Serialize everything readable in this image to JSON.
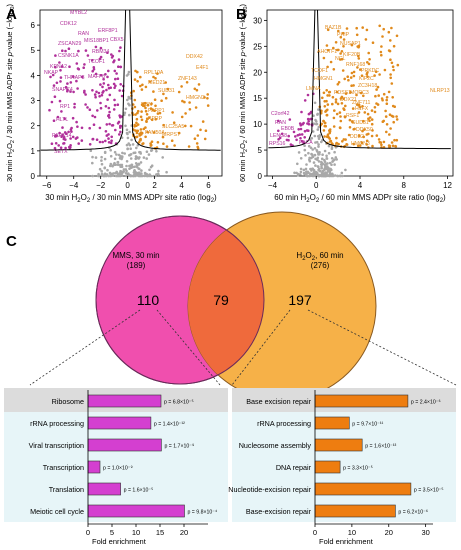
{
  "colors": {
    "magenta": "#b0309a",
    "orange": "#e08a1c",
    "grey": "#a8a8a8",
    "bar_magenta": "#d43fd0",
    "bar_orange": "#ee7d10",
    "circle_pink": "#f04fae",
    "circle_orange": "#f6b148",
    "bg_blue": "#e7f5f8",
    "bg_grey": "#dcdcdc"
  },
  "panels": {
    "a": "A",
    "b": "B",
    "c": "C"
  },
  "chart_data": [
    {
      "type": "scatter",
      "panel": "A",
      "xlabel": "30 min H2O2 / 30 min MMS ADPr site ratio (log2)",
      "ylabel": "30 min H2O2 / 30 min MMS ADPr site p-value (−log10)",
      "xlim": [
        -6.5,
        7
      ],
      "xticks": [
        "−6",
        "−4",
        "−2",
        "0",
        "2",
        "4",
        "6"
      ],
      "xtick_values": [
        -6,
        -4,
        -2,
        0,
        2,
        4,
        6
      ],
      "yticks": [
        "0",
        "1",
        "2",
        "3",
        "4",
        "5",
        "6"
      ],
      "ylim": [
        0,
        6.6
      ],
      "left_labels": [
        "MYBL2",
        "CDK12",
        "RAN",
        "ERF8P1",
        "MIS18BP1",
        "CBX5",
        "ZSCAN29",
        "RBM34",
        "TCOF1",
        "CSNK1A",
        "NKAP",
        "THRAP3",
        "MAFF8",
        "KPNA2",
        "SNAPC4",
        "RP1",
        "HLTL",
        "PARP14",
        "SETX"
      ],
      "right_labels": [
        "DDX42",
        "E4F1",
        "RPL10A",
        "MED21",
        "ZNF143",
        "SUD31",
        "HMGN3",
        "NBN",
        "PARP1",
        "KPRP",
        "SLC25A5",
        "MRPS7",
        "FAM50A"
      ]
    },
    {
      "type": "scatter",
      "panel": "B",
      "xlabel": "60 min H2O2 / 60 min MMS ADPr site ratio (log2)",
      "ylabel": "60 min H2O2 / 60 min MMS ADPr site p-value (−log10)",
      "xlim": [
        -4.5,
        12.5
      ],
      "xticks": [
        "−4",
        "0",
        "4",
        "8",
        "12"
      ],
      "xtick_values": [
        -4,
        0,
        4,
        8,
        12
      ],
      "yticks": [
        "0",
        "5",
        "10",
        "15",
        "20",
        "25",
        "30"
      ],
      "ylim": [
        0,
        32
      ],
      "left_labels": [
        "C2orf42",
        "RAN",
        "EB0B",
        "LENG8",
        "RPS16",
        "PACA"
      ],
      "right_labels": [
        "BAZ1B",
        "PHIP",
        "NUSAP1",
        "AHCTF1",
        "NCL",
        "RNF168",
        "TCOF1",
        "PRKDC",
        "HMGN1",
        "KIF2C",
        "LMNA",
        "PDSS1",
        "MORC3",
        "DDX21",
        "ZNF711",
        "H1FX",
        "RSF1",
        "SUD31",
        "DDX50",
        "DDB2",
        "HMGN3",
        "NLRP13",
        "ZC3H18",
        "KIF20B"
      ]
    },
    {
      "type": "venn",
      "panel": "C",
      "sets": [
        {
          "name": "MMS, 30 min",
          "total": "(189)",
          "only": "110"
        },
        {
          "name": "H2O2, 60 min",
          "total": "(276)",
          "only": "197"
        }
      ],
      "overlap": "79"
    },
    {
      "type": "bar",
      "panel": "C-left",
      "orientation": "horizontal",
      "categories": [
        "Ribosome",
        "rRNA processing",
        "Viral transcription",
        "Transcription",
        "Translation",
        "Meiotic cell cycle"
      ],
      "values": [
        15.2,
        13.1,
        15.3,
        2.5,
        6.8,
        20.1
      ],
      "pvalues": [
        "p = 6.8×10⁻⁵",
        "p = 1.4×10⁻¹²",
        "p = 1.7×10⁻⁹",
        "p = 1.0×10⁻⁹",
        "p = 1.6×10⁻⁵",
        "p = 9.8×10⁻⁴"
      ],
      "xlabel": "Fold enrichment",
      "xlim": [
        0,
        25
      ],
      "xticks": [
        "0",
        "5",
        "10",
        "15",
        "20"
      ],
      "xtick_values": [
        0,
        5,
        10,
        15,
        20
      ]
    },
    {
      "type": "bar",
      "panel": "C-right",
      "orientation": "horizontal",
      "categories": [
        "Base excision repair",
        "rRNA processing",
        "Nucleosome assembly",
        "DNA repair",
        "Nucleotide-excision repair",
        "Base-excision repair"
      ],
      "values": [
        25.2,
        9.3,
        12.8,
        6.8,
        26.0,
        21.8
      ],
      "pvalues": [
        "p = 2.4×10⁻⁶",
        "p = 9.7×10⁻¹¹",
        "p = 1.6×10⁻¹³",
        "p = 3.3×10⁻⁵",
        "p = 3.5×10⁻⁵",
        "p = 6.2×10⁻⁶"
      ],
      "xlabel": "Fold enrichment",
      "xlim": [
        0,
        32
      ],
      "xticks": [
        "0",
        "10",
        "20",
        "30"
      ],
      "xtick_values": [
        0,
        10,
        20,
        30
      ]
    }
  ]
}
